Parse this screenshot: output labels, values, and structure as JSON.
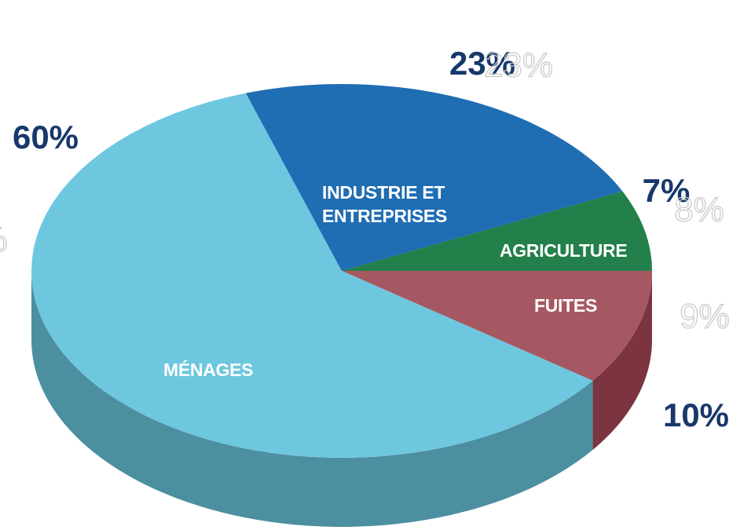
{
  "chart_data": {
    "type": "pie3d",
    "categories": [
      "MÉNAGES",
      "INDUSTRIE ET ENTREPRISES",
      "AGRICULTURE",
      "FUITES"
    ],
    "values": [
      60,
      23,
      7,
      10
    ],
    "value_labels": [
      "60%",
      "23%",
      "7%",
      "10%"
    ],
    "colors": [
      "#6dc7df",
      "#1f6db3",
      "#23804a",
      "#a65862"
    ],
    "side_colors": [
      "#4b8fa1",
      "#174f82",
      "#185a33",
      "#7b3440"
    ],
    "ghost_labels": [
      "23%",
      "8%",
      "9%",
      "%"
    ]
  }
}
